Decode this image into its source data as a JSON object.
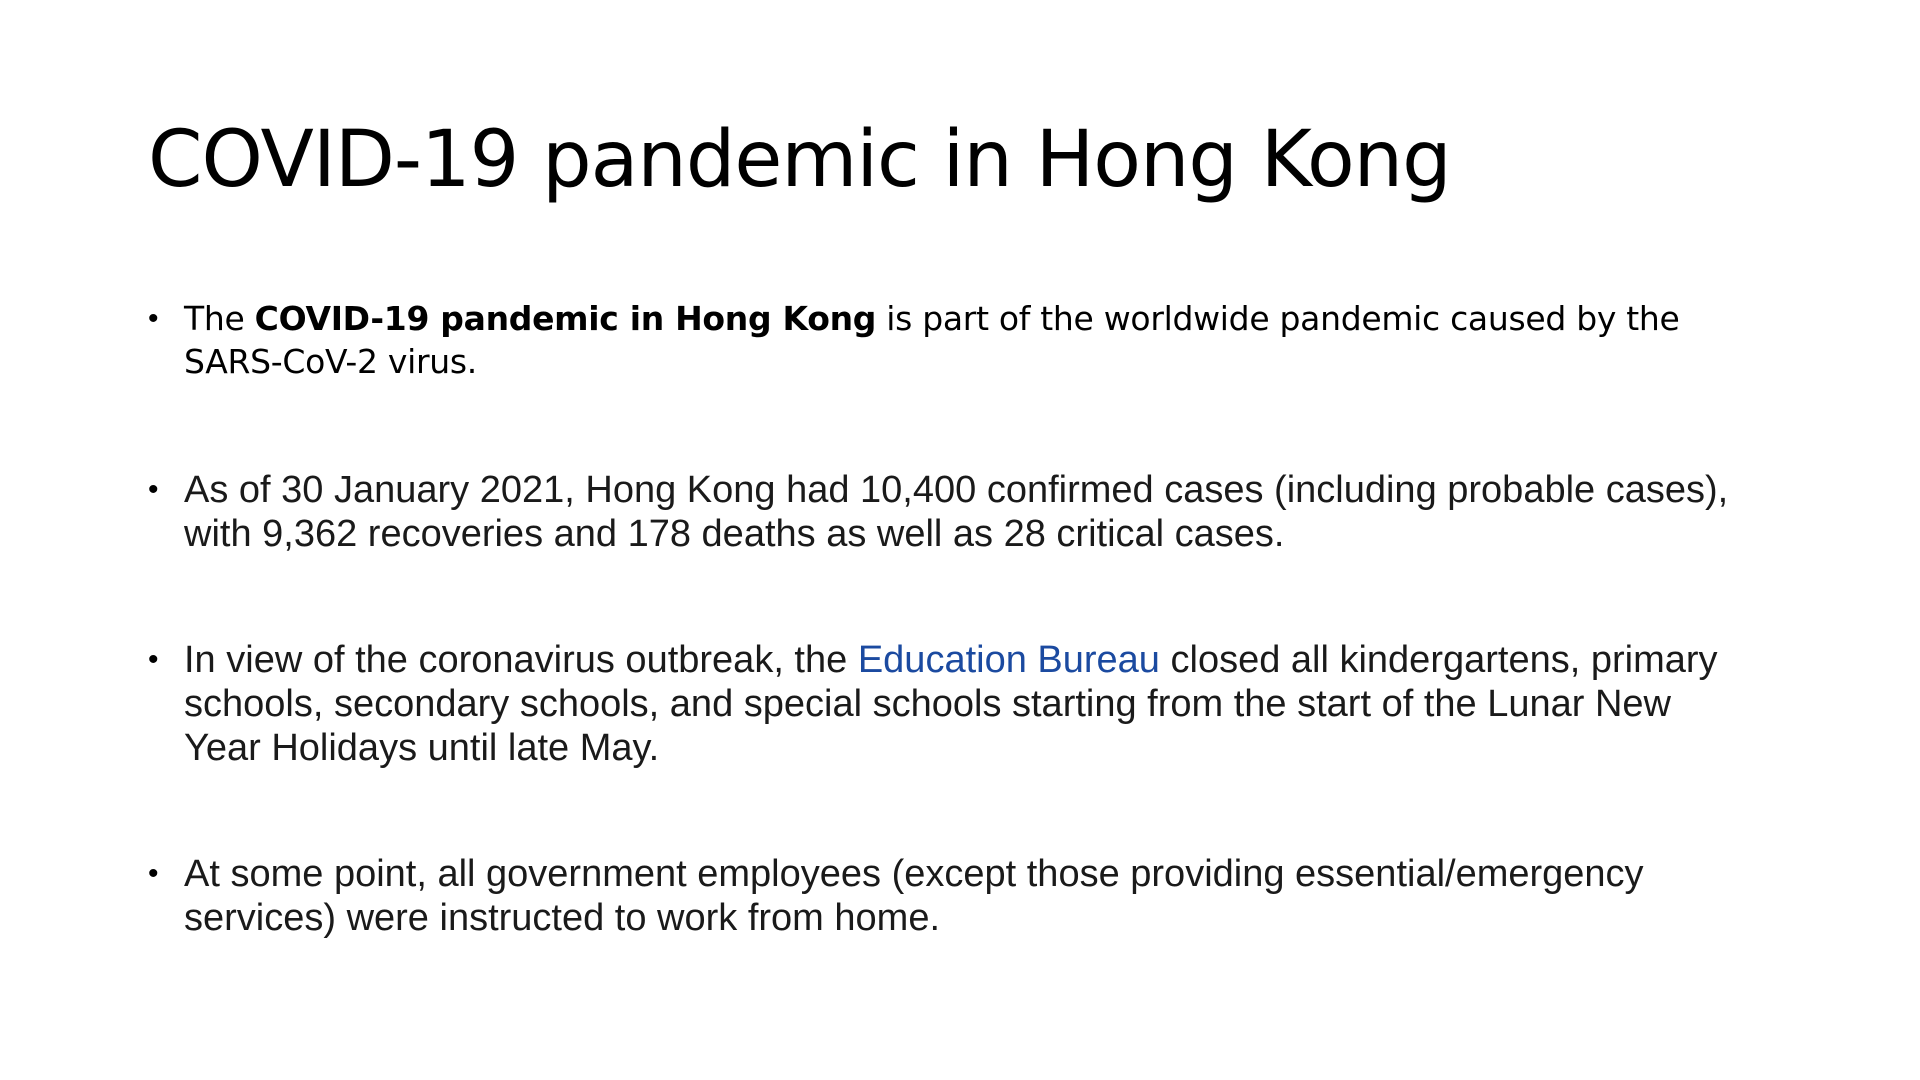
{
  "slide": {
    "title": "COVID-19 pandemic in Hong Kong",
    "bullets": [
      {
        "prefix": "The ",
        "bold": "COVID-19 pandemic in Hong Kong",
        "suffix": " is part of the worldwide pandemic caused by the SARS-CoV-2 virus."
      },
      {
        "text": "As of 30 January 2021, Hong Kong had 10,400 confirmed cases (including probable cases), with 9,362 recoveries and 178 deaths as well as 28 critical cases."
      },
      {
        "prefix": "In view of the coronavirus outbreak, the ",
        "link": "Education Bureau",
        "suffix": " closed all kindergartens, primary schools, secondary schools, and special schools starting from the start of the Lunar New Year Holidays until late May."
      },
      {
        "text": "At some point, all government employees (except those providing essential/emergency services) were instructed to work from home."
      }
    ],
    "bullet_symbol": "•",
    "colors": {
      "text": "#1a1a1a",
      "link": "#1b4aa0",
      "background": "#ffffff"
    }
  }
}
